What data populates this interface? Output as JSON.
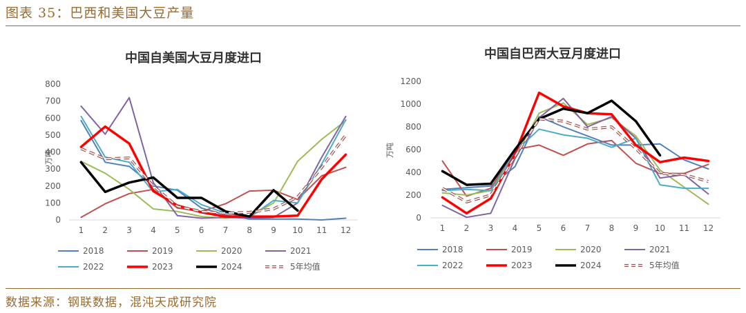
{
  "figure": {
    "title": "图表 35：巴西和美国大豆产量",
    "source": "数据来源：钢联数据，混沌天成研究院"
  },
  "colors": {
    "2018": "#4f81bd",
    "2019": "#c0504d",
    "2020": "#9bbb59",
    "2021": "#8064a2",
    "2022": "#4bacc6",
    "2023": "#ff0000",
    "2024": "#000000",
    "5年均值": "#a05050"
  },
  "chart_data": [
    {
      "type": "line",
      "title": "中国自美国大豆月度进口",
      "xlabel": "",
      "ylabel": "万吨",
      "ylim": [
        0,
        800
      ],
      "yticks": [
        0,
        100,
        200,
        300,
        400,
        500,
        600,
        700,
        800
      ],
      "grid": false,
      "legend": "bottom",
      "x": [
        1,
        2,
        3,
        4,
        5,
        6,
        7,
        8,
        9,
        10,
        11,
        12
      ],
      "series": [
        {
          "name": "2018",
          "values": [
            585,
            340,
            315,
            200,
            175,
            70,
            30,
            5,
            5,
            5,
            0,
            10
          ]
        },
        {
          "name": "2019",
          "values": [
            15,
            95,
            155,
            180,
            70,
            50,
            95,
            170,
            175,
            120,
            260,
            310
          ]
        },
        {
          "name": "2020",
          "values": [
            345,
            275,
            180,
            65,
            50,
            20,
            10,
            20,
            100,
            345,
            475,
            585
          ]
        },
        {
          "name": "2021",
          "values": [
            670,
            505,
            720,
            220,
            25,
            10,
            15,
            10,
            15,
            100,
            370,
            610
          ]
        },
        {
          "name": "2022",
          "values": [
            610,
            370,
            340,
            165,
            180,
            90,
            40,
            15,
            115,
            100,
            330,
            590
          ]
        },
        {
          "name": "2023",
          "values": [
            430,
            550,
            450,
            170,
            85,
            45,
            20,
            20,
            20,
            25,
            240,
            385
          ]
        },
        {
          "name": "2024",
          "values": [
            340,
            165,
            220,
            250,
            130,
            130,
            50,
            20,
            175,
            55,
            null,
            null
          ]
        },
        {
          "name": "5年均值",
          "values": [
            420,
            360,
            365,
            200,
            80,
            50,
            40,
            45,
            65,
            135,
            310,
            500
          ]
        }
      ]
    },
    {
      "type": "line",
      "title": "中国自巴西大豆月度进口",
      "xlabel": "",
      "ylabel": "万吨",
      "ylim": [
        0,
        1200
      ],
      "yticks": [
        0,
        200,
        400,
        600,
        800,
        1000,
        1200
      ],
      "grid": false,
      "legend": "bottom",
      "x": [
        1,
        2,
        3,
        4,
        5,
        6,
        7,
        8,
        9,
        10,
        11,
        12
      ],
      "series": [
        {
          "name": "2018",
          "values": [
            250,
            265,
            280,
            450,
            890,
            800,
            720,
            640,
            640,
            650,
            510,
            430
          ]
        },
        {
          "name": "2019",
          "values": [
            500,
            190,
            260,
            600,
            640,
            550,
            650,
            680,
            480,
            390,
            390,
            470
          ]
        },
        {
          "name": "2020",
          "values": [
            220,
            200,
            240,
            530,
            920,
            1010,
            820,
            880,
            720,
            420,
            270,
            120
          ]
        },
        {
          "name": "2021",
          "values": [
            110,
            5,
            40,
            520,
            880,
            1050,
            800,
            890,
            700,
            350,
            380,
            210
          ]
        },
        {
          "name": "2022",
          "values": [
            240,
            250,
            240,
            580,
            780,
            730,
            700,
            620,
            700,
            290,
            260,
            260
          ]
        },
        {
          "name": "2023",
          "values": [
            180,
            40,
            170,
            560,
            1100,
            980,
            920,
            910,
            640,
            490,
            530,
            500
          ]
        },
        {
          "name": "2024",
          "values": [
            410,
            290,
            300,
            600,
            870,
            960,
            920,
            1030,
            850,
            550,
            null,
            null
          ]
        },
        {
          "name": "5年均值",
          "values": [
            260,
            140,
            200,
            540,
            870,
            850,
            780,
            800,
            610,
            390,
            380,
            320
          ]
        }
      ]
    }
  ]
}
